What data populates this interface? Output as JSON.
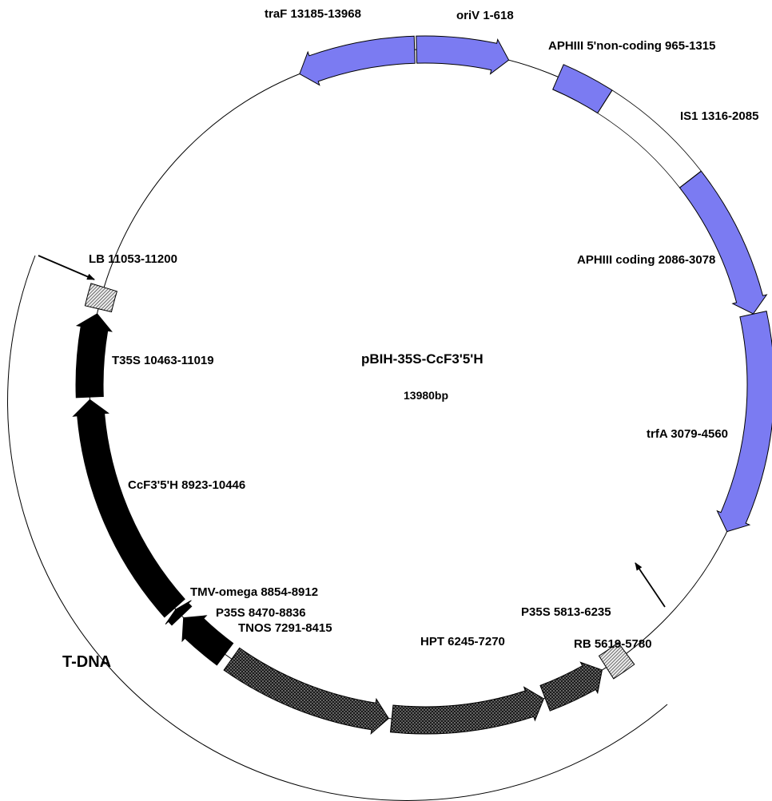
{
  "plasmid": {
    "name": "pBIH-35S-CcF3'5'H",
    "size_label": "13980bp",
    "total_bp": 13980
  },
  "region_label": "T-DNA",
  "colors": {
    "backbone_feature": "#7b7bf2",
    "tdna_feature": "#000000",
    "border_feature": "#555555",
    "outline": "#000000"
  },
  "features": [
    {
      "id": "oriV",
      "label": "oriV 1-618",
      "start": 1,
      "end": 618,
      "shape": "arrow",
      "direction": "cw",
      "style": "blue"
    },
    {
      "id": "APHIII-5nc",
      "label": "APHIII 5'non-coding 965-1315",
      "start": 965,
      "end": 1315,
      "shape": "box",
      "style": "blue"
    },
    {
      "id": "IS1",
      "label": "IS1 1316-2085",
      "start": 1316,
      "end": 2085,
      "shape": "box",
      "style": "white"
    },
    {
      "id": "APHIII-coding",
      "label": "APHIII coding 2086-3078",
      "start": 2086,
      "end": 3078,
      "shape": "arrow",
      "direction": "cw",
      "style": "blue"
    },
    {
      "id": "trfA",
      "label": "trfA 3079-4560",
      "start": 3079,
      "end": 4560,
      "shape": "arrow",
      "direction": "cw",
      "style": "blue"
    },
    {
      "id": "RB",
      "label": "RB 5619-5780",
      "start": 5619,
      "end": 5780,
      "shape": "box",
      "style": "hatch"
    },
    {
      "id": "P35S-1",
      "label": "P35S 5813-6235",
      "start": 5813,
      "end": 6235,
      "shape": "arrow",
      "direction": "ccw",
      "style": "dots"
    },
    {
      "id": "HPT",
      "label": "HPT 6245-7270",
      "start": 6245,
      "end": 7270,
      "shape": "arrow",
      "direction": "ccw",
      "style": "dots"
    },
    {
      "id": "TNOS",
      "label": "TNOS 7291-8415",
      "start": 7291,
      "end": 8415,
      "shape": "arrow",
      "direction": "ccw",
      "style": "dots"
    },
    {
      "id": "P35S-2",
      "label": "P35S 8470-8836",
      "start": 8470,
      "end": 8836,
      "shape": "arrow",
      "direction": "cw",
      "style": "black"
    },
    {
      "id": "TMV-omega",
      "label": "TMV-omega 8854-8912",
      "start": 8854,
      "end": 8912,
      "shape": "arrow",
      "direction": "cw",
      "style": "black"
    },
    {
      "id": "CcF35H",
      "label": "CcF3'5'H 8923-10446",
      "start": 8923,
      "end": 10446,
      "shape": "arrow",
      "direction": "cw",
      "style": "black"
    },
    {
      "id": "T35S",
      "label": "T35S 10463-11019",
      "start": 10463,
      "end": 11019,
      "shape": "arrow",
      "direction": "cw",
      "style": "black"
    },
    {
      "id": "LB",
      "label": "LB 11053-11200",
      "start": 11053,
      "end": 11200,
      "shape": "box",
      "style": "hatch"
    },
    {
      "id": "traF",
      "label": "traF 13185-13968",
      "start": 13185,
      "end": 13968,
      "shape": "arrow",
      "direction": "ccw",
      "style": "blue"
    }
  ]
}
